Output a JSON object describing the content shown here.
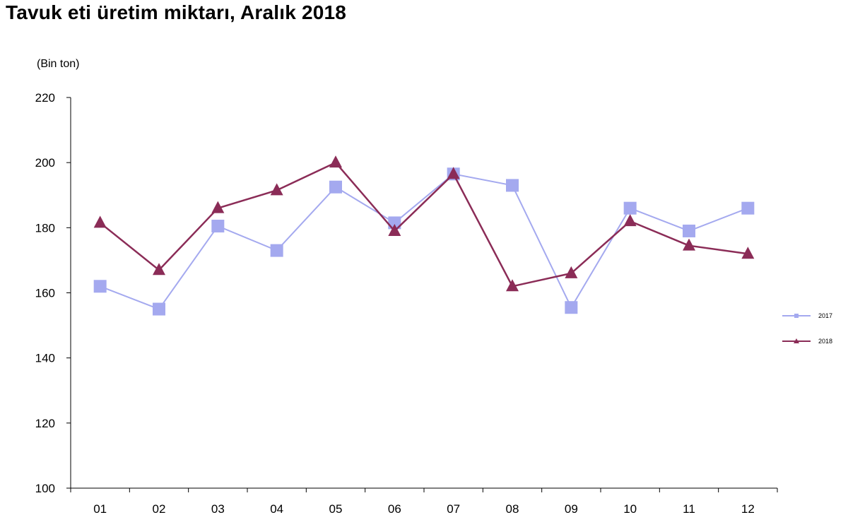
{
  "chart_data": {
    "type": "line",
    "title": "Tavuk eti üretim miktarı, Aralık 2018",
    "ylabel": "(Bin ton)",
    "xlabel": "",
    "categories": [
      "01",
      "02",
      "03",
      "04",
      "05",
      "06",
      "07",
      "08",
      "09",
      "10",
      "11",
      "12"
    ],
    "ylim": [
      100,
      220
    ],
    "yticks": [
      100,
      120,
      140,
      160,
      180,
      200,
      220
    ],
    "grid": false,
    "legend_position": "right",
    "series": [
      {
        "name": "2017",
        "marker": "square",
        "color": "#a4a9ef",
        "values": [
          162,
          155,
          180.5,
          173,
          192.5,
          181.5,
          196.5,
          193,
          155.5,
          186,
          179,
          186
        ]
      },
      {
        "name": "2018",
        "marker": "triangle",
        "color": "#8b2c57",
        "values": [
          181.5,
          167,
          186,
          191.5,
          200,
          179,
          196.5,
          162,
          166,
          182,
          174.5,
          172
        ]
      }
    ]
  }
}
